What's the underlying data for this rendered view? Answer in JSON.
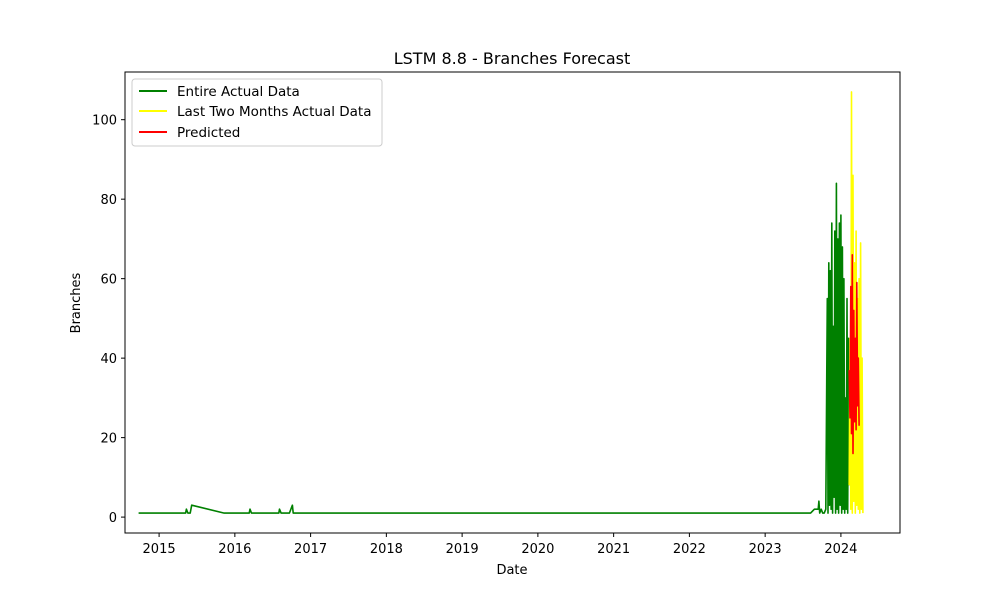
{
  "chart_data": {
    "type": "line",
    "title": "LSTM 8.8 - Branches Forecast",
    "xlabel": "Date",
    "ylabel": "Branches",
    "xlim": [
      2014.55,
      2024.78
    ],
    "ylim": [
      -4,
      112
    ],
    "x_ticks": [
      2015,
      2016,
      2017,
      2018,
      2019,
      2020,
      2021,
      2022,
      2023,
      2024
    ],
    "x_tick_labels": [
      "2015",
      "2016",
      "2017",
      "2018",
      "2019",
      "2020",
      "2021",
      "2022",
      "2023",
      "2024"
    ],
    "y_ticks": [
      0,
      20,
      40,
      60,
      80,
      100
    ],
    "y_tick_labels": [
      "0",
      "20",
      "40",
      "60",
      "80",
      "100"
    ],
    "grid": false,
    "legend_position": "top-left",
    "series": [
      {
        "name": "Entire Actual Data",
        "color": "#008000",
        "x": [
          2014.73,
          2015.35,
          2015.36,
          2015.38,
          2015.41,
          2015.43,
          2015.86,
          2016.19,
          2016.2,
          2016.22,
          2016.23,
          2016.58,
          2016.59,
          2016.61,
          2016.72,
          2016.76,
          2016.77,
          2023.6,
          2023.65,
          2023.7,
          2023.71,
          2023.72,
          2023.74,
          2023.76,
          2023.78,
          2023.8,
          2023.82,
          2023.83,
          2023.84,
          2023.85,
          2023.86,
          2023.87,
          2023.88,
          2023.89,
          2023.9,
          2023.91,
          2023.92,
          2023.93,
          2023.94,
          2023.95,
          2023.96,
          2023.97,
          2023.98,
          2023.99,
          2024.0,
          2024.01,
          2024.02,
          2024.03,
          2024.04,
          2024.05,
          2024.06,
          2024.07,
          2024.08,
          2024.09,
          2024.1,
          2024.11
        ],
        "y": [
          1,
          1,
          2,
          1,
          1,
          3,
          1,
          1,
          2,
          1,
          1,
          1,
          2,
          1,
          1,
          3,
          1,
          1,
          2,
          2,
          4,
          1,
          2,
          1,
          1,
          2,
          55,
          1,
          64,
          3,
          62,
          2,
          74,
          1,
          48,
          5,
          72,
          1,
          84,
          2,
          70,
          1,
          74,
          3,
          76,
          1,
          68,
          2,
          60,
          1,
          30,
          2,
          55,
          1,
          45,
          8
        ],
        "dates_visible": true
      },
      {
        "name": "Last Two Months Actual Data",
        "color": "#ffff00",
        "x": [
          2024.11,
          2024.12,
          2024.13,
          2024.14,
          2024.15,
          2024.16,
          2024.17,
          2024.18,
          2024.19,
          2024.2,
          2024.21,
          2024.22,
          2024.23,
          2024.24,
          2024.25,
          2024.26,
          2024.27,
          2024.28,
          2024.29
        ],
        "y": [
          8,
          45,
          2,
          107,
          1,
          86,
          4,
          64,
          1,
          72,
          3,
          55,
          2,
          60,
          1,
          69,
          2,
          40,
          1
        ]
      },
      {
        "name": "Predicted",
        "color": "#ff0000",
        "x": [
          2024.11,
          2024.12,
          2024.13,
          2024.14,
          2024.15,
          2024.16,
          2024.17,
          2024.18,
          2024.19,
          2024.2,
          2024.21,
          2024.22,
          2024.23,
          2024.24
        ],
        "y": [
          37,
          25,
          58,
          21,
          66,
          16,
          52,
          24,
          45,
          22,
          59,
          28,
          40,
          23
        ]
      }
    ]
  }
}
